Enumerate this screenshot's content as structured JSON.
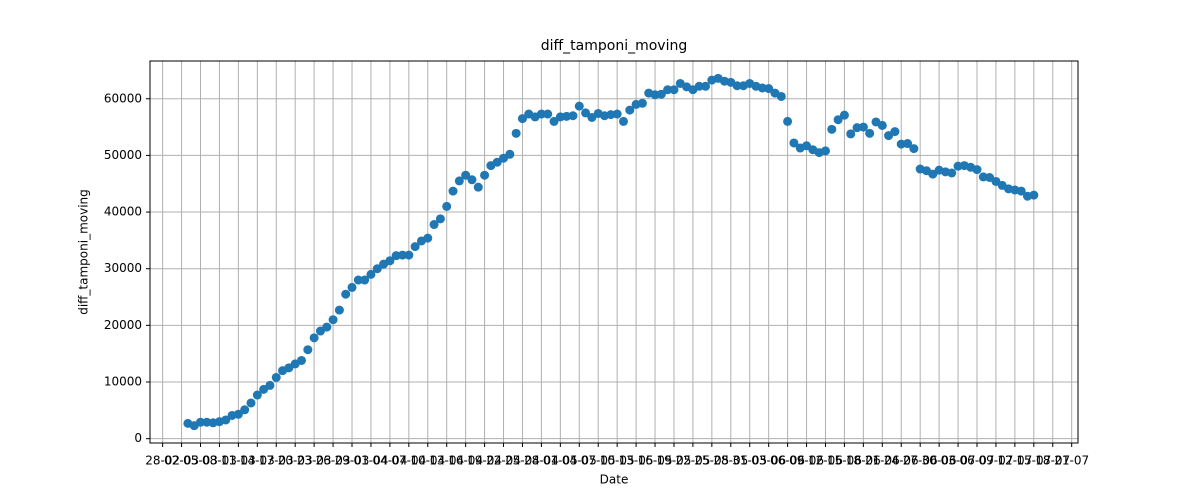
{
  "chart_data": {
    "type": "scatter",
    "title": "diff_tamponi_moving",
    "x_label": "Date",
    "y_label": "diff_tamponi_moving",
    "x": [
      "03-03",
      "04-03",
      "05-03",
      "06-03",
      "07-03",
      "08-03",
      "09-03",
      "10-03",
      "11-03",
      "12-03",
      "13-03",
      "14-03",
      "15-03",
      "16-03",
      "17-03",
      "18-03",
      "19-03",
      "20-03",
      "21-03",
      "22-03",
      "23-03",
      "24-03",
      "25-03",
      "26-03",
      "27-03",
      "28-03",
      "29-03",
      "30-03",
      "31-03",
      "01-04",
      "02-04",
      "03-04",
      "04-04",
      "05-04",
      "06-04",
      "07-04",
      "08-04",
      "09-04",
      "10-04",
      "11-04",
      "12-04",
      "13-04",
      "14-04",
      "15-04",
      "16-04",
      "17-04",
      "18-04",
      "19-04",
      "20-04",
      "21-04",
      "22-04",
      "23-04",
      "24-04",
      "25-04",
      "26-04",
      "27-04",
      "28-04",
      "29-04",
      "30-04",
      "01-05",
      "02-05",
      "03-05",
      "04-05",
      "05-05",
      "06-05",
      "07-05",
      "08-05",
      "09-05",
      "10-05",
      "11-05",
      "12-05",
      "13-05",
      "14-05",
      "15-05",
      "16-05",
      "17-05",
      "18-05",
      "19-05",
      "20-05",
      "21-05",
      "22-05",
      "23-05",
      "24-05",
      "25-05",
      "26-05",
      "27-05",
      "28-05",
      "29-05",
      "30-05",
      "31-05",
      "01-06",
      "02-06",
      "03-06",
      "04-06",
      "05-06",
      "06-06",
      "07-06",
      "08-06",
      "09-06",
      "10-06",
      "11-06",
      "12-06",
      "13-06",
      "14-06",
      "15-06",
      "16-06",
      "17-06",
      "18-06",
      "19-06",
      "20-06",
      "21-06",
      "22-06",
      "23-06",
      "24-06",
      "25-06",
      "26-06",
      "27-06",
      "28-06",
      "29-06",
      "30-06",
      "01-07",
      "02-07",
      "03-07",
      "04-07",
      "05-07",
      "06-07",
      "07-07",
      "08-07",
      "09-07",
      "10-07",
      "11-07",
      "12-07",
      "13-07",
      "14-07",
      "15-07"
    ],
    "series": [
      {
        "name": "diff_tamponi_moving",
        "color": "#1f77b4",
        "values": [
          2700,
          2300,
          2900,
          2900,
          2800,
          3000,
          3300,
          4100,
          4300,
          5100,
          6300,
          7700,
          8700,
          9400,
          10800,
          12000,
          12500,
          13200,
          13800,
          15700,
          17800,
          19000,
          19700,
          21000,
          22700,
          25500,
          26700,
          28000,
          28000,
          29000,
          30000,
          30800,
          31400,
          32300,
          32400,
          32400,
          33900,
          34900,
          35400,
          37800,
          38800,
          41000,
          43700,
          45500,
          46500,
          45700,
          44400,
          46500,
          48200,
          48800,
          49500,
          50200,
          53900,
          56500,
          57300,
          56800,
          57300,
          57300,
          56000,
          56800,
          56900,
          57000,
          58700,
          57500,
          56700,
          57400,
          57000,
          57200,
          57300,
          56000,
          58000,
          59000,
          59200,
          61000,
          60700,
          60800,
          61600,
          61600,
          62700,
          62100,
          61600,
          62200,
          62200,
          63300,
          63600,
          63100,
          62900,
          62300,
          62300,
          62700,
          62200,
          61900,
          61800,
          61000,
          60400,
          56000,
          52200,
          51300,
          51700,
          51000,
          50500,
          50800,
          54600,
          56300,
          57100,
          53800,
          54900,
          55000,
          53900,
          55900,
          55300,
          53500,
          54200,
          52000,
          52100,
          51200,
          47600,
          47300,
          46700,
          47400,
          47100,
          46900,
          48100,
          48200,
          47900,
          47500,
          46200,
          46100,
          45400,
          44700,
          44100,
          43900,
          43700,
          42800,
          43000
        ]
      }
    ],
    "xlim": [
      "26-02",
      "22-07"
    ],
    "xticks": [
      "28-02",
      "02-03",
      "05-03",
      "08-03",
      "11-03",
      "14-03",
      "17-03",
      "20-03",
      "23-03",
      "26-03",
      "29-03",
      "01-04",
      "04-04",
      "07-04",
      "10-04",
      "13-04",
      "16-04",
      "19-04",
      "22-04",
      "25-04",
      "28-04",
      "01-05",
      "04-05",
      "07-05",
      "10-05",
      "13-05",
      "16-05",
      "19-05",
      "22-05",
      "25-05",
      "28-05",
      "31-05",
      "03-06",
      "06-06",
      "09-06",
      "12-06",
      "15-06",
      "18-06",
      "21-06",
      "24-06",
      "27-06",
      "30-06",
      "03-07",
      "06-07",
      "09-07",
      "12-07",
      "15-07",
      "18-07",
      "21-07"
    ],
    "ylim": [
      -765,
      66665
    ],
    "yticks": [
      0,
      10000,
      20000,
      30000,
      40000,
      50000,
      60000
    ],
    "grid": true
  }
}
